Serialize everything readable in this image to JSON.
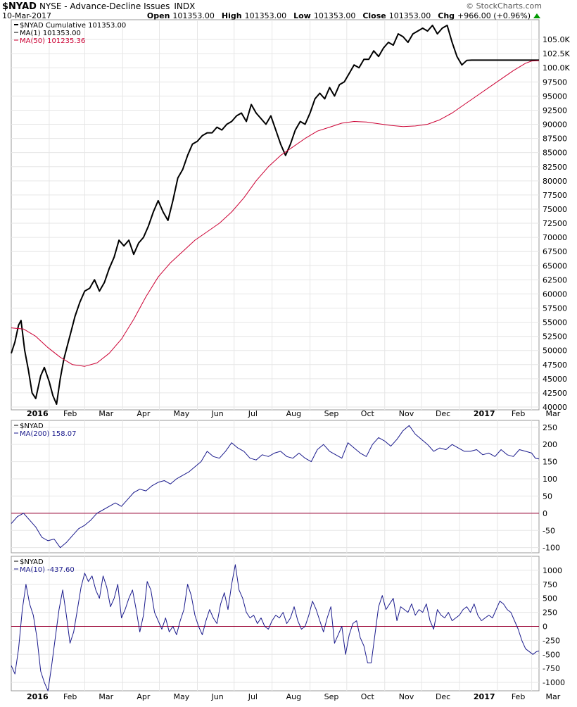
{
  "header": {
    "symbol": "$NYAD",
    "description": "NYSE - Advance-Decline Issues",
    "exchange": "INDX",
    "date": "10-Mar-2017",
    "brand": "© StockCharts.com",
    "quote": [
      {
        "label": "Open",
        "value": "101353.00"
      },
      {
        "label": "High",
        "value": "101353.00"
      },
      {
        "label": "Low",
        "value": "101353.00"
      },
      {
        "label": "Close",
        "value": "101353.00"
      },
      {
        "label": "Chg",
        "value": "+966.00 (+0.96%)"
      }
    ],
    "change_direction": "up"
  },
  "colors": {
    "price": "#000000",
    "ma50": "#cc0033",
    "indicator": "#1a1a8c",
    "zero_line": "#990033",
    "grid": "#e6e6e6",
    "up_arrow": "#009900"
  },
  "x_axis": {
    "labels": [
      {
        "text": "2016",
        "bold": true,
        "day": 0
      },
      {
        "text": "Feb",
        "bold": false,
        "day": 31
      },
      {
        "text": "Mar",
        "bold": false,
        "day": 60
      },
      {
        "text": "Apr",
        "bold": false,
        "day": 91
      },
      {
        "text": "May",
        "bold": false,
        "day": 121
      },
      {
        "text": "Jun",
        "bold": false,
        "day": 152
      },
      {
        "text": "Jul",
        "bold": false,
        "day": 182
      },
      {
        "text": "Aug",
        "bold": false,
        "day": 213
      },
      {
        "text": "Sep",
        "bold": false,
        "day": 244
      },
      {
        "text": "Oct",
        "bold": false,
        "day": 274
      },
      {
        "text": "Nov",
        "bold": false,
        "day": 305
      },
      {
        "text": "Dec",
        "bold": false,
        "day": 335
      },
      {
        "text": "2017",
        "bold": true,
        "day": 366
      },
      {
        "text": "Feb",
        "bold": false,
        "day": 397
      },
      {
        "text": "Mar",
        "bold": false,
        "day": 425
      }
    ]
  },
  "chart_data": [
    {
      "type": "line",
      "panel": "price",
      "legend": [
        {
          "text": "$NYAD Cumulative 101353.00",
          "color": "#000000"
        },
        {
          "text": "MA(1) 101353.00",
          "color": "#000000"
        },
        {
          "text": "MA(50) 101235.36",
          "color": "#cc0033"
        }
      ],
      "ylim": [
        39500,
        108500
      ],
      "yticks": [
        40000,
        42500,
        45000,
        47500,
        50000,
        52500,
        55000,
        57500,
        60000,
        62500,
        65000,
        67500,
        70000,
        72500,
        75000,
        77500,
        80000,
        82500,
        85000,
        87500,
        90000,
        92500,
        95000,
        97500,
        100000,
        102500,
        105000
      ],
      "ytick_labels": [
        "40000",
        "42500",
        "45000",
        "47500",
        "50000",
        "52500",
        "55000",
        "57500",
        "60000",
        "62500",
        "65000",
        "67500",
        "70000",
        "72500",
        "75000",
        "77500",
        "80000",
        "82500",
        "85000",
        "87500",
        "90000",
        "92500",
        "95000",
        "97500",
        "100.0K",
        "102.5K",
        "105.0K"
      ],
      "series": [
        {
          "role": "cumulative",
          "color": "#000000",
          "x_day": [
            0,
            3,
            6,
            8,
            11,
            14,
            17,
            20,
            24,
            27,
            31,
            34,
            37,
            40,
            43,
            46,
            49,
            52,
            56,
            60,
            64,
            68,
            72,
            76,
            80,
            84,
            88,
            92,
            96,
            100,
            104,
            108,
            112,
            116,
            120,
            124,
            128,
            132,
            136,
            140,
            144,
            148,
            152,
            156,
            160,
            164,
            168,
            172,
            176,
            180,
            184,
            188,
            192,
            196,
            200,
            204,
            208,
            212,
            216,
            220,
            224,
            228,
            232,
            236,
            240,
            244,
            248,
            252,
            256,
            260,
            264,
            268,
            272,
            276,
            280,
            284,
            288,
            292,
            296,
            300,
            304,
            308,
            312,
            316,
            320,
            324,
            328,
            332,
            336,
            340,
            344,
            348,
            352,
            356,
            360,
            364,
            368,
            372,
            376,
            380,
            384,
            388,
            392,
            396,
            400,
            404,
            408,
            412,
            416,
            420,
            423,
            425,
            427,
            429,
            431
          ],
          "y": [
            49500,
            51500,
            54500,
            55300,
            50000,
            46500,
            42500,
            41500,
            45500,
            47000,
            44500,
            42000,
            40500,
            45000,
            48500,
            51000,
            53500,
            56000,
            58500,
            60500,
            61000,
            62500,
            60500,
            62000,
            64500,
            66500,
            69500,
            68500,
            69500,
            67000,
            69000,
            70000,
            72000,
            74500,
            76500,
            74500,
            73000,
            76500,
            80500,
            82000,
            84500,
            86500,
            87000,
            88000,
            88500,
            88500,
            89500,
            89000,
            90000,
            90500,
            91500,
            92000,
            90500,
            93500,
            92000,
            91000,
            90000,
            91500,
            89000,
            86500,
            84500,
            86500,
            89000,
            90500,
            90000,
            92000,
            94500,
            95500,
            94500,
            96500,
            95000,
            97000,
            97500,
            99000,
            100500,
            100000,
            101500,
            101500,
            103000,
            102000,
            103500,
            104500,
            104000,
            106000,
            105500,
            104500,
            106000,
            106500,
            107000,
            106500,
            107500,
            106000,
            107000,
            107500,
            104500,
            102000,
            100500,
            101300,
            101353,
            101353,
            101353,
            101353,
            101353,
            101353,
            101353,
            101353,
            101353,
            101353,
            101353,
            101353,
            101353,
            101353,
            101353,
            101353,
            101353
          ]
        },
        {
          "role": "ma50",
          "color": "#cc0033",
          "x_day": [
            0,
            10,
            20,
            30,
            40,
            50,
            60,
            70,
            80,
            90,
            100,
            110,
            120,
            130,
            140,
            150,
            160,
            170,
            180,
            190,
            200,
            210,
            220,
            230,
            240,
            250,
            260,
            270,
            280,
            290,
            300,
            310,
            320,
            330,
            340,
            350,
            360,
            370,
            380,
            390,
            400,
            410,
            420,
            425,
            431
          ],
          "y": [
            54000,
            53800,
            52500,
            50500,
            48800,
            47500,
            47200,
            47800,
            49500,
            52000,
            55500,
            59500,
            63000,
            65500,
            67500,
            69500,
            71000,
            72500,
            74500,
            77000,
            80000,
            82500,
            84500,
            86000,
            87500,
            88800,
            89500,
            90200,
            90500,
            90400,
            90100,
            89800,
            89600,
            89700,
            90000,
            90800,
            92000,
            93500,
            95000,
            96500,
            98000,
            99500,
            100800,
            101200,
            101235
          ]
        }
      ]
    },
    {
      "type": "line",
      "panel": "ma200",
      "legend": [
        {
          "text": "$NYAD",
          "color": "#000000"
        },
        {
          "text": "MA(200) 158.07",
          "color": "#1a1a8c"
        }
      ],
      "ylim": [
        -115,
        270
      ],
      "yticks": [
        -100,
        -50,
        0,
        50,
        100,
        150,
        200,
        250
      ],
      "ytick_labels": [
        "-100",
        "-50",
        "0",
        "50",
        "100",
        "150",
        "200",
        "250"
      ],
      "zero_line": 0,
      "series": [
        {
          "role": "ma200",
          "color": "#1a1a8c",
          "x_day": [
            0,
            5,
            10,
            15,
            20,
            25,
            30,
            35,
            40,
            45,
            50,
            55,
            60,
            65,
            70,
            75,
            80,
            85,
            90,
            95,
            100,
            105,
            110,
            115,
            120,
            125,
            130,
            135,
            140,
            145,
            150,
            155,
            160,
            165,
            170,
            175,
            180,
            185,
            190,
            195,
            200,
            205,
            210,
            215,
            220,
            225,
            230,
            235,
            240,
            245,
            250,
            255,
            260,
            265,
            270,
            275,
            280,
            285,
            290,
            295,
            300,
            305,
            310,
            315,
            320,
            325,
            330,
            335,
            340,
            345,
            350,
            355,
            360,
            365,
            370,
            375,
            380,
            385,
            390,
            395,
            400,
            405,
            410,
            415,
            420,
            425,
            428,
            431
          ],
          "y": [
            -30,
            -10,
            0,
            -20,
            -40,
            -70,
            -80,
            -75,
            -100,
            -85,
            -65,
            -45,
            -35,
            -20,
            0,
            10,
            20,
            30,
            20,
            40,
            60,
            70,
            65,
            80,
            90,
            95,
            85,
            100,
            110,
            120,
            135,
            150,
            180,
            165,
            160,
            180,
            205,
            190,
            180,
            160,
            155,
            170,
            165,
            175,
            180,
            165,
            160,
            175,
            160,
            150,
            185,
            200,
            180,
            170,
            160,
            205,
            190,
            175,
            165,
            200,
            220,
            210,
            195,
            215,
            240,
            255,
            230,
            215,
            200,
            180,
            190,
            185,
            200,
            190,
            180,
            180,
            185,
            170,
            175,
            165,
            185,
            170,
            165,
            185,
            180,
            175,
            160,
            158
          ]
        }
      ]
    },
    {
      "type": "line",
      "panel": "ma10",
      "legend": [
        {
          "text": "$NYAD",
          "color": "#000000"
        },
        {
          "text": "MA(10) -437.60",
          "color": "#1a1a8c"
        }
      ],
      "ylim": [
        -1150,
        1250
      ],
      "yticks": [
        -1000,
        -750,
        -500,
        -250,
        0,
        250,
        500,
        750,
        1000
      ],
      "ytick_labels": [
        "-1000",
        "-750",
        "-500",
        "-250",
        "0",
        "250",
        "500",
        "750",
        "1000"
      ],
      "zero_line": 0,
      "series": [
        {
          "role": "ma10",
          "color": "#1a1a8c",
          "x_day": [
            0,
            3,
            6,
            9,
            12,
            15,
            18,
            21,
            24,
            27,
            30,
            33,
            36,
            39,
            42,
            45,
            48,
            51,
            54,
            57,
            60,
            63,
            66,
            69,
            72,
            75,
            78,
            81,
            84,
            87,
            90,
            93,
            96,
            99,
            102,
            105,
            108,
            111,
            114,
            117,
            120,
            123,
            126,
            129,
            132,
            135,
            138,
            141,
            144,
            147,
            150,
            153,
            156,
            159,
            162,
            165,
            168,
            171,
            174,
            177,
            180,
            183,
            186,
            189,
            192,
            195,
            198,
            201,
            204,
            207,
            210,
            213,
            216,
            219,
            222,
            225,
            228,
            231,
            234,
            237,
            240,
            243,
            246,
            249,
            252,
            255,
            258,
            261,
            264,
            267,
            270,
            273,
            276,
            279,
            282,
            285,
            288,
            291,
            294,
            297,
            300,
            303,
            306,
            309,
            312,
            315,
            318,
            321,
            324,
            327,
            330,
            333,
            336,
            339,
            342,
            345,
            348,
            351,
            354,
            357,
            360,
            363,
            366,
            369,
            372,
            375,
            378,
            381,
            384,
            387,
            390,
            393,
            396,
            399,
            402,
            405,
            408,
            411,
            414,
            417,
            420,
            423,
            426,
            429,
            431
          ],
          "y": [
            -700,
            -850,
            -400,
            300,
            750,
            400,
            200,
            -200,
            -800,
            -1000,
            -1150,
            -700,
            -200,
            300,
            650,
            200,
            -300,
            -100,
            300,
            700,
            950,
            800,
            900,
            650,
            500,
            900,
            700,
            350,
            500,
            750,
            150,
            300,
            500,
            650,
            300,
            -100,
            200,
            800,
            650,
            250,
            100,
            -50,
            150,
            -100,
            0,
            -150,
            100,
            300,
            750,
            550,
            200,
            0,
            -150,
            100,
            300,
            150,
            50,
            400,
            600,
            300,
            750,
            1100,
            650,
            500,
            250,
            150,
            200,
            50,
            150,
            0,
            -50,
            100,
            200,
            150,
            250,
            50,
            150,
            350,
            100,
            -50,
            0,
            200,
            450,
            300,
            100,
            -100,
            150,
            350,
            -300,
            -150,
            0,
            -500,
            -150,
            50,
            100,
            -200,
            -350,
            -650,
            -650,
            -150,
            350,
            550,
            300,
            400,
            500,
            100,
            350,
            300,
            250,
            400,
            200,
            300,
            250,
            400,
            100,
            -50,
            300,
            200,
            150,
            250,
            100,
            150,
            200,
            300,
            350,
            250,
            400,
            200,
            100,
            150,
            200,
            150,
            300,
            450,
            400,
            300,
            250,
            100,
            -50,
            -250,
            -400,
            -450,
            -500,
            -450,
            -440
          ]
        }
      ]
    }
  ]
}
